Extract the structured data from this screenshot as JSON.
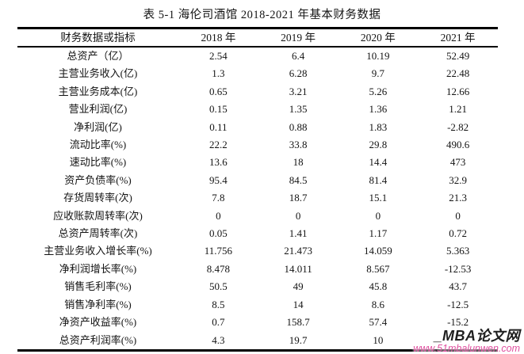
{
  "colors": {
    "table_line": "#000000",
    "watermark_dark": "#1f1f1f",
    "watermark_pink": "#e0509f"
  },
  "page": {
    "title": "表 5-1 海伦司酒馆 2018-2021 年基本财务数据"
  },
  "table": {
    "columns": [
      "财务数据或指标",
      "2018 年",
      "2019 年",
      "2020 年",
      "2021 年"
    ],
    "rows": [
      {
        "label": "总资产（亿）",
        "values": [
          "2.54",
          "6.4",
          "10.19",
          "52.49"
        ]
      },
      {
        "label": "主营业务收入(亿)",
        "values": [
          "1.3",
          "6.28",
          "9.7",
          "22.48"
        ]
      },
      {
        "label": "主营业务成本(亿)",
        "values": [
          "0.65",
          "3.21",
          "5.26",
          "12.66"
        ]
      },
      {
        "label": "营业利润(亿)",
        "values": [
          "0.15",
          "1.35",
          "1.36",
          "1.21"
        ]
      },
      {
        "label": "净利润(亿)",
        "values": [
          "0.11",
          "0.88",
          "1.83",
          "-2.82"
        ]
      },
      {
        "label": "流动比率(%)",
        "values": [
          "22.2",
          "33.8",
          "29.8",
          "490.6"
        ]
      },
      {
        "label": "速动比率(%)",
        "values": [
          "13.6",
          "18",
          "14.4",
          "473"
        ]
      },
      {
        "label": "资产负债率(%)",
        "values": [
          "95.4",
          "84.5",
          "81.4",
          "32.9"
        ]
      },
      {
        "label": "存货周转率(次)",
        "values": [
          "7.8",
          "18.7",
          "15.1",
          "21.3"
        ]
      },
      {
        "label": "应收账款周转率(次)",
        "values": [
          "0",
          "0",
          "0",
          "0"
        ]
      },
      {
        "label": "总资产周转率(次)",
        "values": [
          "0.05",
          "1.41",
          "1.17",
          "0.72"
        ]
      },
      {
        "label": "主营业务收入增长率(%)",
        "values": [
          "11.756",
          "21.473",
          "14.059",
          "5.363"
        ]
      },
      {
        "label": "净利润增长率(%)",
        "values": [
          "8.478",
          "14.011",
          "8.567",
          "-12.53"
        ]
      },
      {
        "label": "销售毛利率(%)",
        "values": [
          "50.5",
          "49",
          "45.8",
          "43.7"
        ]
      },
      {
        "label": "销售净利率(%)",
        "values": [
          "8.5",
          "14",
          "8.6",
          "-12.5"
        ]
      },
      {
        "label": "净资产收益率(%)",
        "values": [
          "0.7",
          "158.7",
          "57.4",
          "-15.2"
        ]
      },
      {
        "label": "总资产利润率(%)",
        "values": [
          "4.3",
          "19.7",
          "10",
          ""
        ]
      }
    ]
  },
  "watermark": {
    "line1": "_MBA论文网",
    "line2": "www.51mbalunwen.com"
  }
}
